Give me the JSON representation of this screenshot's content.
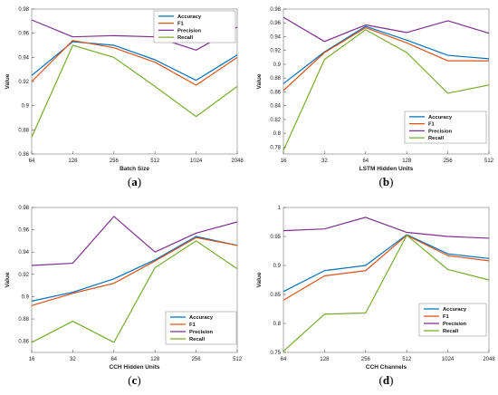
{
  "chart_data": [
    {
      "type": "line",
      "caption_open": "(",
      "caption_letter": "a",
      "caption_close": ")",
      "xlabel": "Batch Size",
      "ylabel": "Value",
      "categories": [
        "64",
        "128",
        "256",
        "512",
        "1024",
        "2048"
      ],
      "ylim": [
        0.86,
        0.98
      ],
      "yticks": [
        "0.86",
        "0.88",
        "0.9",
        "0.92",
        "0.94",
        "0.96",
        "0.98"
      ],
      "ytick_values": [
        0.86,
        0.88,
        0.9,
        0.92,
        0.94,
        0.96,
        0.98
      ],
      "legend": "top-right",
      "series": [
        {
          "name": "Accuracy",
          "color": "#0072bd",
          "values": [
            0.925,
            0.953,
            0.95,
            0.938,
            0.921,
            0.942
          ]
        },
        {
          "name": "F1",
          "color": "#d95319",
          "values": [
            0.92,
            0.954,
            0.948,
            0.936,
            0.917,
            0.94
          ]
        },
        {
          "name": "Precision",
          "color": "#7e2f8e",
          "values": [
            0.971,
            0.957,
            0.958,
            0.957,
            0.946,
            0.965
          ]
        },
        {
          "name": "Recall",
          "color": "#77ac30",
          "values": [
            0.874,
            0.95,
            0.94,
            0.916,
            0.891,
            0.916
          ]
        }
      ]
    },
    {
      "type": "line",
      "caption_open": "(",
      "caption_letter": "b",
      "caption_close": ")",
      "xlabel": "LSTM Hidden Units",
      "ylabel": "Value",
      "categories": [
        "16",
        "32",
        "64",
        "128",
        "256",
        "512"
      ],
      "ylim": [
        0.77,
        0.98
      ],
      "yticks": [
        "0.78",
        "0.8",
        "0.82",
        "0.84",
        "0.86",
        "0.88",
        "0.9",
        "0.92",
        "0.94",
        "0.96",
        "0.98"
      ],
      "ytick_values": [
        0.78,
        0.8,
        0.82,
        0.84,
        0.86,
        0.88,
        0.9,
        0.92,
        0.94,
        0.96,
        0.98
      ],
      "legend": "bottom-right",
      "series": [
        {
          "name": "Accuracy",
          "color": "#0072bd",
          "values": [
            0.872,
            0.918,
            0.955,
            0.935,
            0.913,
            0.908
          ]
        },
        {
          "name": "F1",
          "color": "#d95319",
          "values": [
            0.862,
            0.917,
            0.953,
            0.931,
            0.905,
            0.905
          ]
        },
        {
          "name": "Precision",
          "color": "#7e2f8e",
          "values": [
            0.968,
            0.933,
            0.957,
            0.946,
            0.963,
            0.945
          ]
        },
        {
          "name": "Recall",
          "color": "#77ac30",
          "values": [
            0.775,
            0.907,
            0.95,
            0.917,
            0.858,
            0.87
          ]
        }
      ]
    },
    {
      "type": "line",
      "caption_open": "(",
      "caption_letter": "c",
      "caption_close": ")",
      "xlabel": "CCH Hidden Units",
      "ylabel": "Value",
      "categories": [
        "16",
        "32",
        "64",
        "128",
        "256",
        "512"
      ],
      "ylim": [
        0.85,
        0.98
      ],
      "yticks": [
        "0.86",
        "0.88",
        "0.9",
        "0.92",
        "0.94",
        "0.96",
        "0.98"
      ],
      "ytick_values": [
        0.86,
        0.88,
        0.9,
        0.92,
        0.94,
        0.96,
        0.98
      ],
      "legend": "bottom-right",
      "series": [
        {
          "name": "Accuracy",
          "color": "#0072bd",
          "values": [
            0.896,
            0.904,
            0.916,
            0.933,
            0.954,
            0.946
          ]
        },
        {
          "name": "F1",
          "color": "#d95319",
          "values": [
            0.892,
            0.903,
            0.912,
            0.932,
            0.953,
            0.946
          ]
        },
        {
          "name": "Precision",
          "color": "#7e2f8e",
          "values": [
            0.928,
            0.93,
            0.972,
            0.94,
            0.957,
            0.967
          ]
        },
        {
          "name": "Recall",
          "color": "#77ac30",
          "values": [
            0.859,
            0.878,
            0.859,
            0.926,
            0.95,
            0.925
          ]
        }
      ]
    },
    {
      "type": "line",
      "caption_open": "(",
      "caption_letter": "d",
      "caption_close": ")",
      "xlabel": "CCH Channels",
      "ylabel": "Value",
      "categories": [
        "64",
        "128",
        "256",
        "512",
        "1024",
        "2048"
      ],
      "ylim": [
        0.75,
        1.0
      ],
      "yticks": [
        "0.75",
        "0.8",
        "0.85",
        "0.9",
        "0.95",
        "1"
      ],
      "ytick_values": [
        0.75,
        0.8,
        0.85,
        0.9,
        0.95,
        1.0
      ],
      "legend": "bottom-right",
      "series": [
        {
          "name": "Accuracy",
          "color": "#0072bd",
          "values": [
            0.855,
            0.891,
            0.9,
            0.953,
            0.92,
            0.912
          ]
        },
        {
          "name": "F1",
          "color": "#d95319",
          "values": [
            0.84,
            0.882,
            0.891,
            0.952,
            0.917,
            0.908
          ]
        },
        {
          "name": "Precision",
          "color": "#7e2f8e",
          "values": [
            0.96,
            0.963,
            0.983,
            0.957,
            0.95,
            0.947
          ]
        },
        {
          "name": "Recall",
          "color": "#77ac30",
          "values": [
            0.752,
            0.816,
            0.818,
            0.952,
            0.893,
            0.875
          ]
        }
      ]
    }
  ]
}
